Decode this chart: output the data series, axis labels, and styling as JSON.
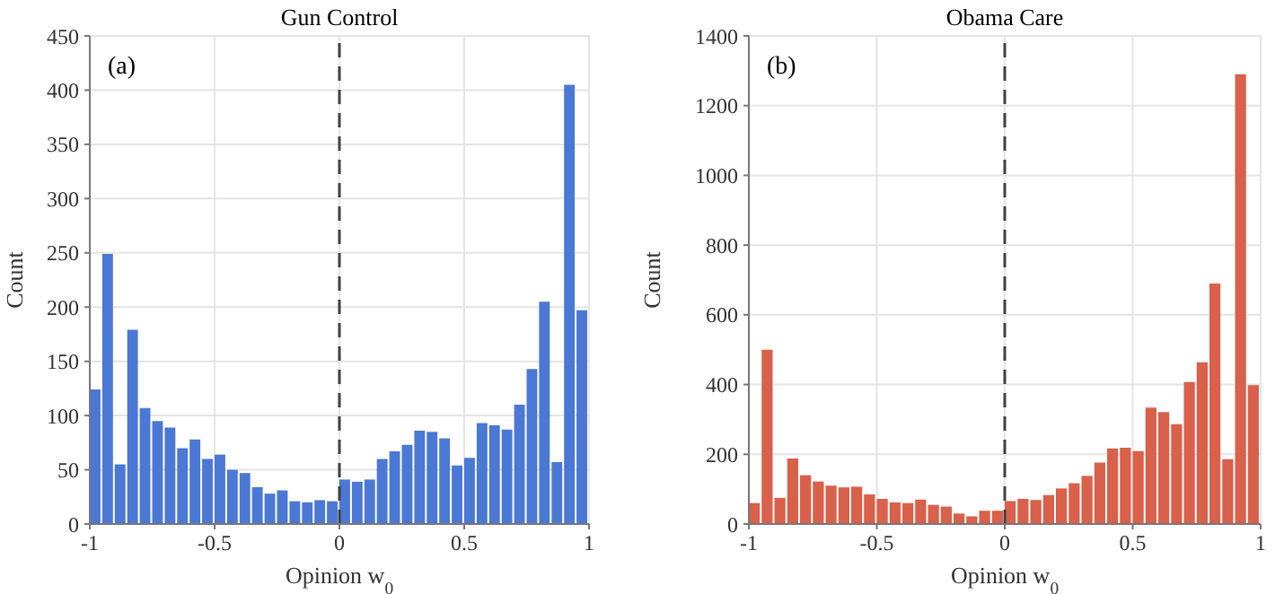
{
  "chart_data": [
    {
      "type": "histogram",
      "title": "Gun Control",
      "xlabel": "Opinion w$_{0}$",
      "ylabel": "Count",
      "annotations": [
        "(a)"
      ],
      "color": "#4a78d4",
      "bins": [
        -1,
        -0.95,
        -0.9,
        -0.85,
        -0.8,
        -0.75,
        -0.7,
        -0.65,
        -0.6,
        -0.55,
        -0.5,
        -0.45,
        -0.4,
        -0.35,
        -0.3,
        -0.25,
        -0.2,
        -0.15,
        -0.1,
        -0.05,
        0,
        0.05,
        0.1,
        0.15,
        0.2,
        0.25,
        0.3,
        0.35,
        0.4,
        0.45,
        0.5,
        0.55,
        0.6,
        0.65,
        0.7,
        0.75,
        0.8,
        0.85,
        0.9,
        0.95,
        1
      ],
      "values": [
        124,
        249,
        55,
        179,
        107,
        95,
        89,
        70,
        78,
        60,
        64,
        50,
        47,
        34,
        28,
        31,
        21,
        20,
        22,
        21,
        41,
        39,
        41,
        60,
        67,
        73,
        86,
        85,
        79,
        54,
        61,
        93,
        91,
        87,
        110,
        143,
        205,
        57,
        405,
        197
      ],
      "xlim": [
        -1,
        1
      ],
      "xticks": [
        -1,
        -0.5,
        0,
        0.5,
        1
      ],
      "ylim": [
        0,
        450
      ],
      "yticks": [
        0,
        50,
        100,
        150,
        200,
        250,
        300,
        350,
        400,
        450
      ],
      "grid": true,
      "ref_lines": [
        {
          "axis": "x",
          "value": 0,
          "color": "#404040",
          "line_style": "dashed"
        }
      ]
    },
    {
      "type": "histogram",
      "title": "Obama Care",
      "xlabel": "Opinion w$_{0}$",
      "ylabel": "Count",
      "annotations": [
        "(b)"
      ],
      "color": "#d9604a",
      "bins": [
        -1,
        -0.95,
        -0.9,
        -0.85,
        -0.8,
        -0.75,
        -0.7,
        -0.65,
        -0.6,
        -0.55,
        -0.5,
        -0.45,
        -0.4,
        -0.35,
        -0.3,
        -0.25,
        -0.2,
        -0.15,
        -0.1,
        -0.05,
        0,
        0.05,
        0.1,
        0.15,
        0.2,
        0.25,
        0.3,
        0.35,
        0.4,
        0.45,
        0.5,
        0.55,
        0.6,
        0.65,
        0.7,
        0.75,
        0.8,
        0.85,
        0.9,
        0.95,
        1
      ],
      "values": [
        60,
        500,
        75,
        188,
        140,
        122,
        110,
        105,
        107,
        85,
        72,
        62,
        60,
        70,
        55,
        50,
        30,
        22,
        38,
        38,
        66,
        72,
        69,
        83,
        102,
        117,
        138,
        176,
        217,
        219,
        209,
        334,
        321,
        286,
        407,
        464,
        690,
        186,
        1290,
        398
      ],
      "xlim": [
        -1,
        1
      ],
      "xticks": [
        -1,
        -0.5,
        0,
        0.5,
        1
      ],
      "ylim": [
        0,
        1400
      ],
      "yticks": [
        0,
        200,
        400,
        600,
        800,
        1000,
        1200,
        1400
      ],
      "grid": true,
      "ref_lines": [
        {
          "axis": "x",
          "value": 0,
          "color": "#404040",
          "line_style": "dashed"
        }
      ]
    }
  ]
}
